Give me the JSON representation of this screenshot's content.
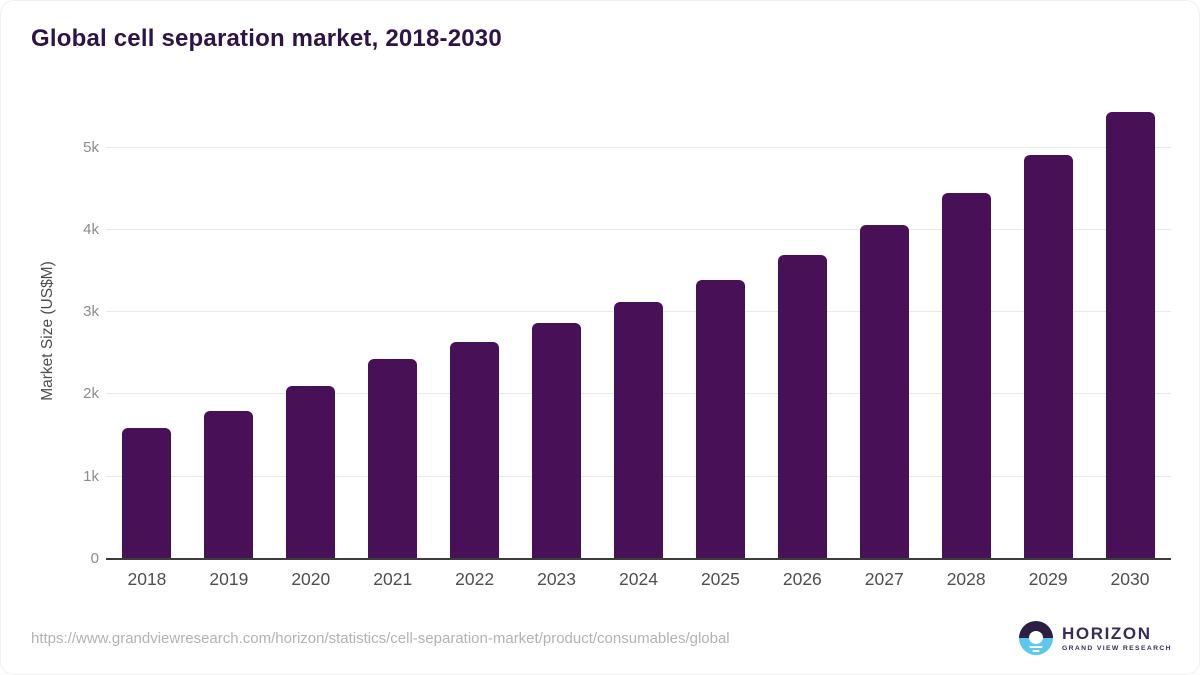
{
  "title": "Global cell separation market, 2018-2030",
  "chart_data": {
    "type": "bar",
    "title": "Global cell separation market, 2018-2030",
    "categories": [
      "2018",
      "2019",
      "2020",
      "2021",
      "2022",
      "2023",
      "2024",
      "2025",
      "2026",
      "2027",
      "2028",
      "2029",
      "2030"
    ],
    "values": [
      1590,
      1800,
      2100,
      2430,
      2640,
      2870,
      3120,
      3390,
      3700,
      4060,
      4450,
      4910,
      5430
    ],
    "xlabel": "",
    "ylabel": "Market Size (US$M)",
    "ylim": [
      0,
      5550
    ],
    "yticks": [
      {
        "label": "0",
        "value": 0
      },
      {
        "label": "1k",
        "value": 1000
      },
      {
        "label": "2k",
        "value": 2000
      },
      {
        "label": "3k",
        "value": 3000
      },
      {
        "label": "4k",
        "value": 4000
      },
      {
        "label": "5k",
        "value": 5000
      }
    ],
    "grid": "horizontal",
    "legend": "none",
    "bar_color": "#481157"
  },
  "footer": {
    "source_url": "https://www.grandviewresearch.com/horizon/statistics/cell-separation-market/product/consumables/global",
    "logo": {
      "name": "HORIZON",
      "subtitle": "GRAND VIEW RESEARCH"
    }
  },
  "colors": {
    "bar": "#481157",
    "title": "#2f1447",
    "axis_line": "#3c3c3c",
    "gridline": "#e9e8ea",
    "ytick_text": "#8c8c8c",
    "xtick_text": "#4f4f4f",
    "axis_title_text": "#4d4d4d",
    "source_text": "#b3b3b3",
    "logo_purple": "#3b2b5c",
    "logo_dark": "#2b1f42",
    "logo_blue": "#5ec7f0"
  }
}
